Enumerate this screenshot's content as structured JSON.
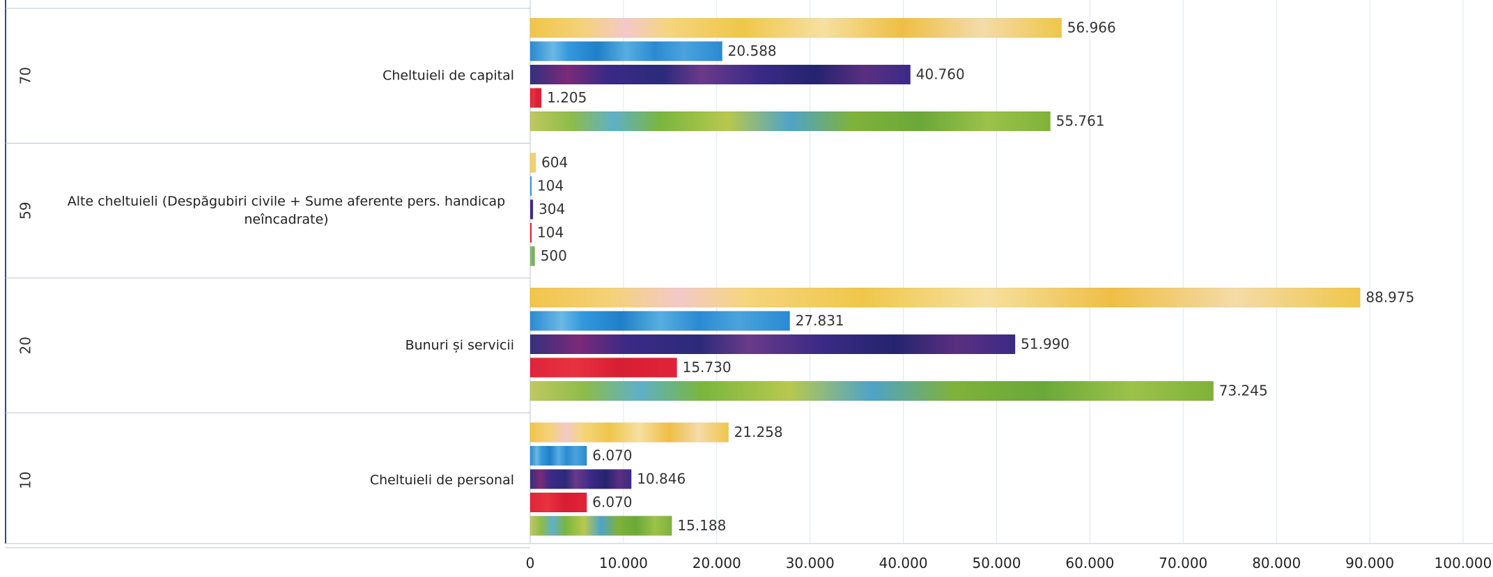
{
  "chart_data": {
    "type": "bar",
    "orientation": "horizontal",
    "title": "",
    "xlabel": "",
    "ylabel": "",
    "xlim": [
      0,
      100000
    ],
    "grid": true,
    "legend": "none",
    "x_ticks": [
      "0",
      "10.000",
      "20.000",
      "30.000",
      "40.000",
      "50.000",
      "60.000",
      "70.000",
      "80.000",
      "90.000",
      "100.000"
    ],
    "x_tick_values": [
      0,
      10000,
      20000,
      30000,
      40000,
      50000,
      60000,
      70000,
      80000,
      90000,
      100000
    ],
    "categories": [
      {
        "code": "70",
        "label_lines": [
          "Cheltuieli de capital"
        ]
      },
      {
        "code": "59",
        "label_lines": [
          "Alte cheltuieli (Despăgubiri civile + Sume aferente pers. handicap",
          "neîncadrate)"
        ]
      },
      {
        "code": "20",
        "label_lines": [
          "Bunuri și servicii"
        ]
      },
      {
        "code": "10",
        "label_lines": [
          "Cheltuieli de personal"
        ]
      }
    ],
    "series": [
      {
        "color": "#f0c64a",
        "values": [
          56966,
          604,
          88975,
          21258
        ],
        "labels": [
          "56.966",
          "604",
          "88.975",
          "21.258"
        ]
      },
      {
        "color": "#2f8fd4",
        "values": [
          20588,
          104,
          27831,
          6070
        ],
        "labels": [
          "20.588",
          "104",
          "27.831",
          "6.070"
        ]
      },
      {
        "color": "#3b2a86",
        "values": [
          40760,
          304,
          51990,
          10846
        ],
        "labels": [
          "40.760",
          "304",
          "51.990",
          "10.846"
        ]
      },
      {
        "color": "#e0233a",
        "values": [
          1205,
          104,
          15730,
          6070
        ],
        "labels": [
          "1.205",
          "104",
          "15.730",
          "6.070"
        ]
      },
      {
        "color": "#7fb23a",
        "values": [
          55761,
          500,
          73245,
          15188
        ],
        "labels": [
          "55.761",
          "500",
          "73.245",
          "15.188"
        ]
      }
    ]
  }
}
